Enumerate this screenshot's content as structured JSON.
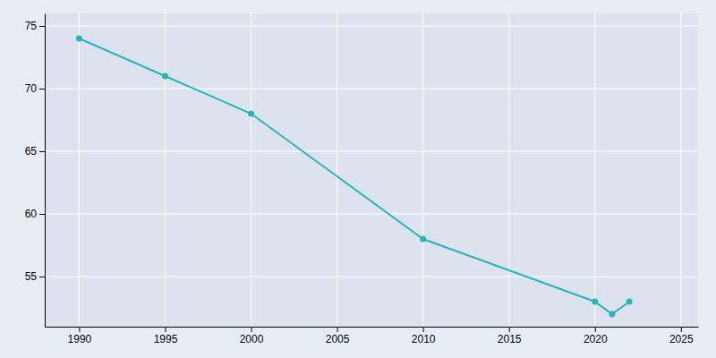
{
  "chart_data": {
    "type": "line",
    "x": [
      1990,
      1995,
      2000,
      2010,
      2020,
      2021,
      2022
    ],
    "values": [
      74,
      71,
      68,
      58,
      53,
      52,
      53
    ],
    "color": "#2ab5b5",
    "marker": "circle",
    "xlim": [
      1988,
      2026
    ],
    "ylim": [
      51,
      76
    ],
    "xticks": [
      1990,
      1995,
      2000,
      2005,
      2010,
      2015,
      2020,
      2025
    ],
    "yticks": [
      55,
      60,
      65,
      70,
      75
    ],
    "grid": true
  }
}
